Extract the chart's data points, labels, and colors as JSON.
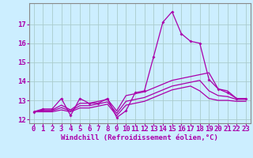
{
  "xlabel": "Windchill (Refroidissement éolien,°C)",
  "x_values": [
    0,
    1,
    2,
    3,
    4,
    5,
    6,
    7,
    8,
    9,
    10,
    11,
    12,
    13,
    14,
    15,
    16,
    17,
    18,
    19,
    20,
    21,
    22,
    23
  ],
  "line1": [
    12.4,
    12.55,
    12.55,
    13.1,
    12.2,
    13.1,
    12.85,
    12.85,
    13.1,
    12.1,
    12.45,
    13.4,
    13.5,
    15.3,
    17.1,
    17.65,
    16.5,
    16.1,
    16.0,
    14.1,
    13.6,
    13.4,
    13.1,
    13.1
  ],
  "line2": [
    12.4,
    12.5,
    12.5,
    12.75,
    12.5,
    12.85,
    12.85,
    12.95,
    13.05,
    12.45,
    13.25,
    13.35,
    13.45,
    13.65,
    13.85,
    14.05,
    14.15,
    14.25,
    14.35,
    14.45,
    13.6,
    13.5,
    13.1,
    13.1
  ],
  "line3": [
    12.4,
    12.45,
    12.45,
    12.62,
    12.45,
    12.72,
    12.72,
    12.82,
    12.92,
    12.32,
    12.95,
    13.05,
    13.15,
    13.35,
    13.55,
    13.75,
    13.85,
    13.95,
    14.05,
    13.5,
    13.25,
    13.2,
    13.05,
    13.05
  ],
  "line4": [
    12.4,
    12.4,
    12.4,
    12.5,
    12.4,
    12.6,
    12.6,
    12.7,
    12.8,
    12.2,
    12.75,
    12.85,
    12.95,
    13.15,
    13.35,
    13.55,
    13.65,
    13.75,
    13.5,
    13.1,
    13.0,
    13.0,
    12.95,
    12.95
  ],
  "line_color": "#aa00aa",
  "bg_color": "#cceeff",
  "grid_color": "#aacccc",
  "ylim": [
    11.8,
    18.1
  ],
  "yticks": [
    12,
    13,
    14,
    15,
    16,
    17
  ],
  "xticks": [
    0,
    1,
    2,
    3,
    4,
    5,
    6,
    7,
    8,
    9,
    10,
    11,
    12,
    13,
    14,
    15,
    16,
    17,
    18,
    19,
    20,
    21,
    22,
    23
  ],
  "xlabel_fontsize": 6.5,
  "tick_fontsize": 6.5,
  "tick_color": "#aa00aa",
  "spine_color": "#888888"
}
